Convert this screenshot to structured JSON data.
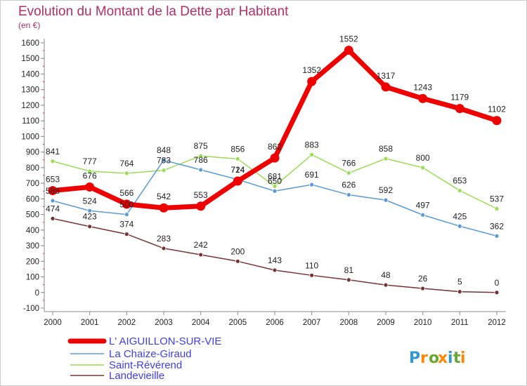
{
  "chart_data": {
    "type": "line",
    "title": "Evolution du Montant de la Dette par Habitant",
    "subtitle": "(en €)",
    "xlabel": "",
    "ylabel": "",
    "x": [
      "2000",
      "2001",
      "2002",
      "2003",
      "2004",
      "2005",
      "2006",
      "2007",
      "2008",
      "2009",
      "2010",
      "2011",
      "2012"
    ],
    "ylim": [
      -100,
      1600
    ],
    "yticks": [
      -100,
      0,
      100,
      200,
      300,
      400,
      500,
      600,
      700,
      800,
      900,
      1000,
      1100,
      1200,
      1300,
      1400,
      1500,
      1600
    ],
    "grid": false,
    "legend_position": "bottom-left",
    "series": [
      {
        "name": "L' AIGUILLON-SUR-VIE",
        "color": "#ee0000",
        "values": [
          653,
          676,
          566,
          542,
          553,
          714,
          862,
          1352,
          1552,
          1317,
          1243,
          1179,
          1102
        ],
        "labels": [
          "653",
          "676",
          "566",
          "542",
          "553",
          "714",
          "862",
          "1352",
          "1552",
          "1317",
          "1243",
          "1179",
          "1102"
        ]
      },
      {
        "name": "La Chaize-Giraud",
        "color": "#5b9bd5",
        "values": [
          588,
          524,
          500,
          848,
          786,
          724,
          650,
          691,
          626,
          592,
          497,
          425,
          362
        ],
        "labels": [
          "588",
          "524",
          "500",
          "848",
          "786",
          "724",
          "650",
          "691",
          "626",
          "592",
          "497",
          "425",
          "362"
        ]
      },
      {
        "name": "Saint-Révérend",
        "color": "#99dd55",
        "values": [
          841,
          777,
          764,
          783,
          875,
          856,
          681,
          883,
          766,
          858,
          800,
          653,
          537
        ],
        "labels": [
          "841",
          "777",
          "764",
          "783",
          "875",
          "856",
          "681",
          "883",
          "766",
          "858",
          "800",
          "653",
          "537"
        ]
      },
      {
        "name": "Landevieille",
        "color": "#773333",
        "values": [
          474,
          423,
          374,
          283,
          242,
          200,
          143,
          110,
          81,
          48,
          26,
          5,
          0
        ],
        "labels": [
          "474",
          "423",
          "374",
          "283",
          "242",
          "200",
          "143",
          "110",
          "81",
          "48",
          "26",
          "5",
          "0"
        ]
      }
    ]
  },
  "logo": {
    "text": "Proxiti",
    "letter_colors": [
      "#3399cc",
      "#ff8800",
      "#66aa33",
      "#ff8800",
      "#3399cc",
      "#66aa33",
      "#ff8800"
    ]
  },
  "colors": {
    "title": "#b0306a",
    "axis": "#888888",
    "frame": "#cccccc",
    "legend_text": "#3d3df2"
  }
}
